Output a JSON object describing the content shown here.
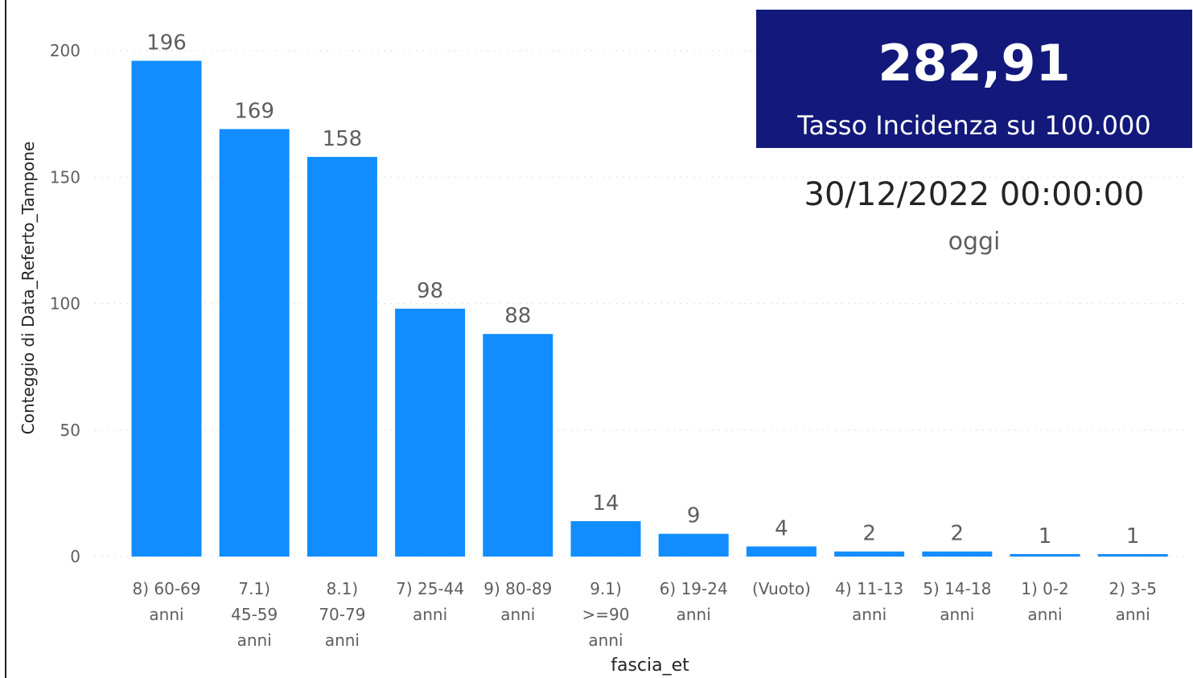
{
  "chart_data": {
    "type": "bar",
    "xlabel": "fascia_et",
    "ylabel": "Conteggio di Data_Referto_Tampone",
    "ylim": [
      0,
      200
    ],
    "yticks": [
      0,
      50,
      100,
      150,
      200
    ],
    "grid": true,
    "categories": [
      [
        "8) 60-69",
        "anni"
      ],
      [
        "7.1)",
        "45-59",
        "anni"
      ],
      [
        "8.1)",
        "70-79",
        "anni"
      ],
      [
        "7) 25-44",
        "anni"
      ],
      [
        "9) 80-89",
        "anni"
      ],
      [
        "9.1)",
        ">=90",
        "anni"
      ],
      [
        "6) 19-24",
        "anni"
      ],
      [
        "(Vuoto)"
      ],
      [
        "4) 11-13",
        "anni"
      ],
      [
        "5) 14-18",
        "anni"
      ],
      [
        "1) 0-2",
        "anni"
      ],
      [
        "2) 3-5",
        "anni"
      ]
    ],
    "values": [
      196,
      169,
      158,
      98,
      88,
      14,
      9,
      4,
      2,
      2,
      1,
      1
    ],
    "colors": {
      "bar": "#118DFF",
      "grid": "#C8C6C4",
      "text": "#605E5C",
      "axis_title": "#252423"
    }
  },
  "kpi": {
    "value": "282,91",
    "label": "Tasso Incidenza su 100.000",
    "background": "#12197A"
  },
  "date_card": {
    "value": "30/12/2022 00:00:00",
    "label": "oggi"
  }
}
